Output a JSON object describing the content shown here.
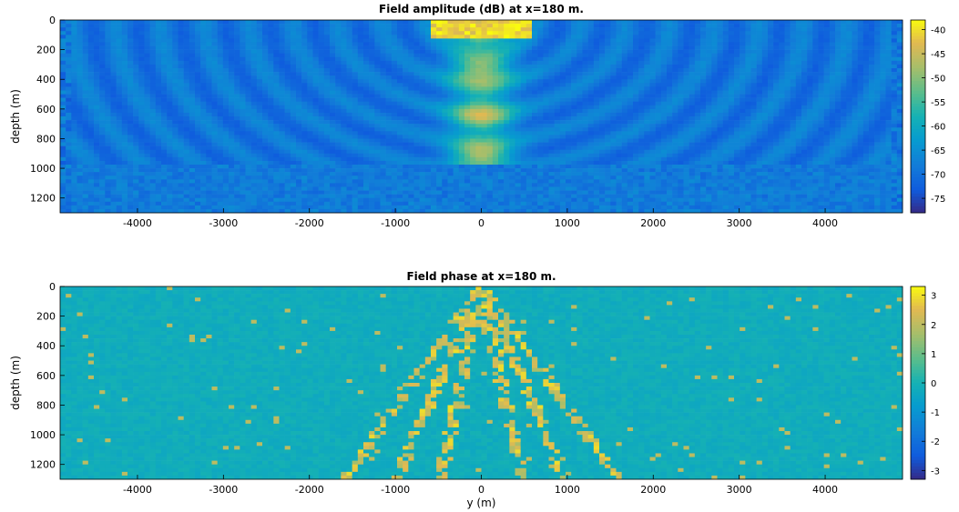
{
  "chart_data": [
    {
      "type": "heatmap",
      "title": "Field amplitude (dB) at x=180 m.",
      "ylabel": "depth (m)",
      "xlabel": "",
      "xlim": [
        -4900,
        4900
      ],
      "ylim": [
        0,
        1300
      ],
      "y_reversed": true,
      "xticks": [
        -4000,
        -3000,
        -2000,
        -1000,
        0,
        1000,
        2000,
        3000,
        4000
      ],
      "yticks": [
        0,
        200,
        400,
        600,
        800,
        1000,
        1200
      ],
      "colorbar": {
        "range": [
          -78,
          -38
        ],
        "ticks": [
          -40,
          -45,
          -50,
          -55,
          -60,
          -65,
          -70,
          -75
        ]
      },
      "colormap": "parula"
    },
    {
      "type": "heatmap",
      "title": "Field phase at x=180 m.",
      "ylabel": "depth (m)",
      "xlabel": "y (m)",
      "xlim": [
        -4900,
        4900
      ],
      "ylim": [
        0,
        1300
      ],
      "y_reversed": true,
      "xticks": [
        -4000,
        -3000,
        -2000,
        -1000,
        0,
        1000,
        2000,
        3000,
        4000
      ],
      "yticks": [
        0,
        200,
        400,
        600,
        800,
        1000,
        1200
      ],
      "colorbar": {
        "range": [
          -3.3,
          3.3
        ],
        "ticks": [
          3,
          2,
          1,
          0,
          -1,
          -2,
          -3
        ]
      },
      "colormap": "parula"
    }
  ]
}
